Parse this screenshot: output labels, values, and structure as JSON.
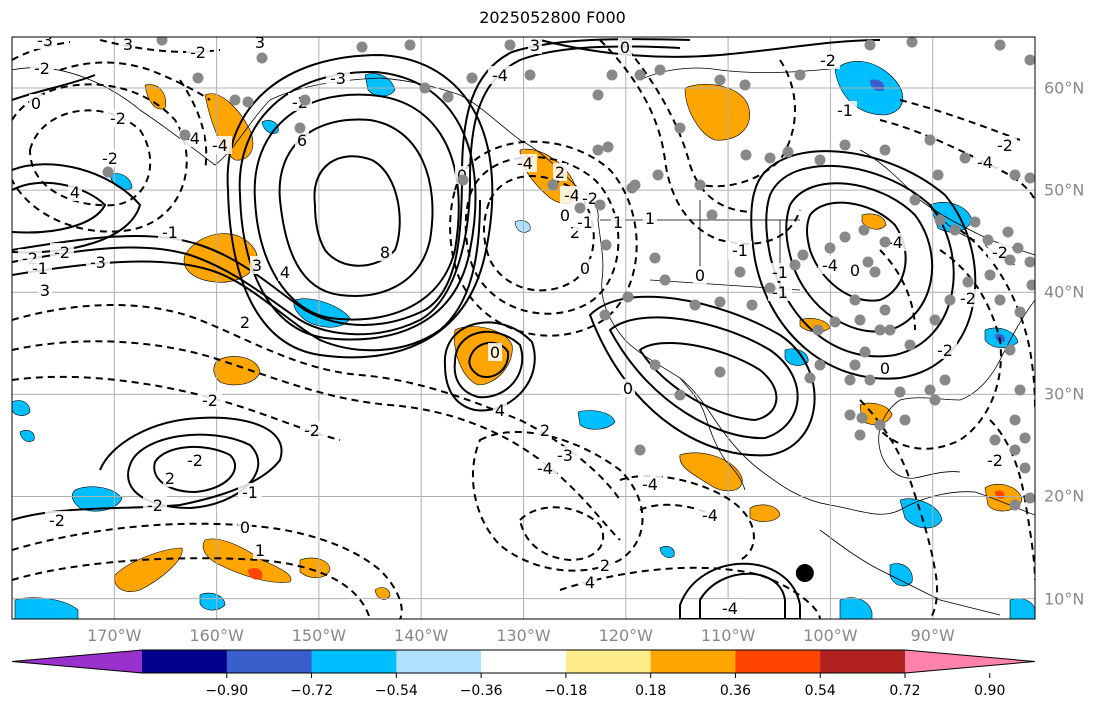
{
  "title": "2025052800 F000",
  "map": {
    "extent": {
      "lon": [
        -180,
        -80
      ],
      "lat": [
        8,
        65
      ]
    },
    "grid_color": "#b0b0b0",
    "lon_ticks": [
      {
        "lon": -170,
        "label": "170°W"
      },
      {
        "lon": -160,
        "label": "160°W"
      },
      {
        "lon": -150,
        "label": "150°W"
      },
      {
        "lon": -140,
        "label": "140°W"
      },
      {
        "lon": -130,
        "label": "130°W"
      },
      {
        "lon": -120,
        "label": "120°W"
      },
      {
        "lon": -110,
        "label": "110°W"
      },
      {
        "lon": -100,
        "label": "100°W"
      },
      {
        "lon": -90,
        "label": "90°W"
      }
    ],
    "lat_ticks": [
      {
        "lat": 60,
        "label": "60°N"
      },
      {
        "lat": 50,
        "label": "50°N"
      },
      {
        "lat": 40,
        "label": "40°N"
      },
      {
        "lat": 30,
        "label": "30°N"
      },
      {
        "lat": 20,
        "label": "20°N"
      },
      {
        "lat": 10,
        "label": "10°N"
      }
    ],
    "contour_labels": [
      "-3",
      "3",
      "-2",
      "-2",
      "0",
      "-2",
      "-2",
      "-4",
      "3",
      "-3",
      "3",
      "0",
      "-2",
      "6",
      "-4",
      "4",
      "8",
      "0",
      "4",
      "3",
      "-4",
      "3",
      "-2",
      "-2",
      "-1",
      "-3",
      "-1",
      "-4",
      "2",
      "-4",
      "0",
      "2",
      "-2",
      "-1",
      "0",
      "1",
      "1",
      "0",
      "-1",
      "-1",
      "2",
      "-2",
      "-2",
      "-2",
      "2",
      "-2",
      "-2",
      "-1",
      "0",
      "1",
      "0",
      "4",
      "2",
      "-3",
      "-4",
      "-4",
      "-4",
      "4",
      "2",
      "-4",
      "-2",
      "-1",
      "-1",
      "0",
      "-4",
      "-4",
      "-4",
      "-2",
      "-2",
      "-2",
      "-2",
      "-2",
      "0",
      "0"
    ],
    "marker": {
      "lon": -102.5,
      "lat": 12.5
    }
  },
  "colorbar": {
    "colors": [
      "#9932cc",
      "#00008b",
      "#3a5fcd",
      "#00bfff",
      "#b0e2ff",
      "#ffffff",
      "#ffec8b",
      "#ffa500",
      "#ff4500",
      "#b22222",
      "#ff82ab"
    ],
    "tick_labels": [
      "−0.90",
      "−0.72",
      "−0.54",
      "−0.36",
      "−0.18",
      "0.18",
      "0.36",
      "0.54",
      "0.72",
      "0.90"
    ]
  },
  "shading": {
    "orange": "#ffa500",
    "cyan": "#00bfff",
    "red": "#ff4500",
    "blue": "#3a5fcd"
  }
}
